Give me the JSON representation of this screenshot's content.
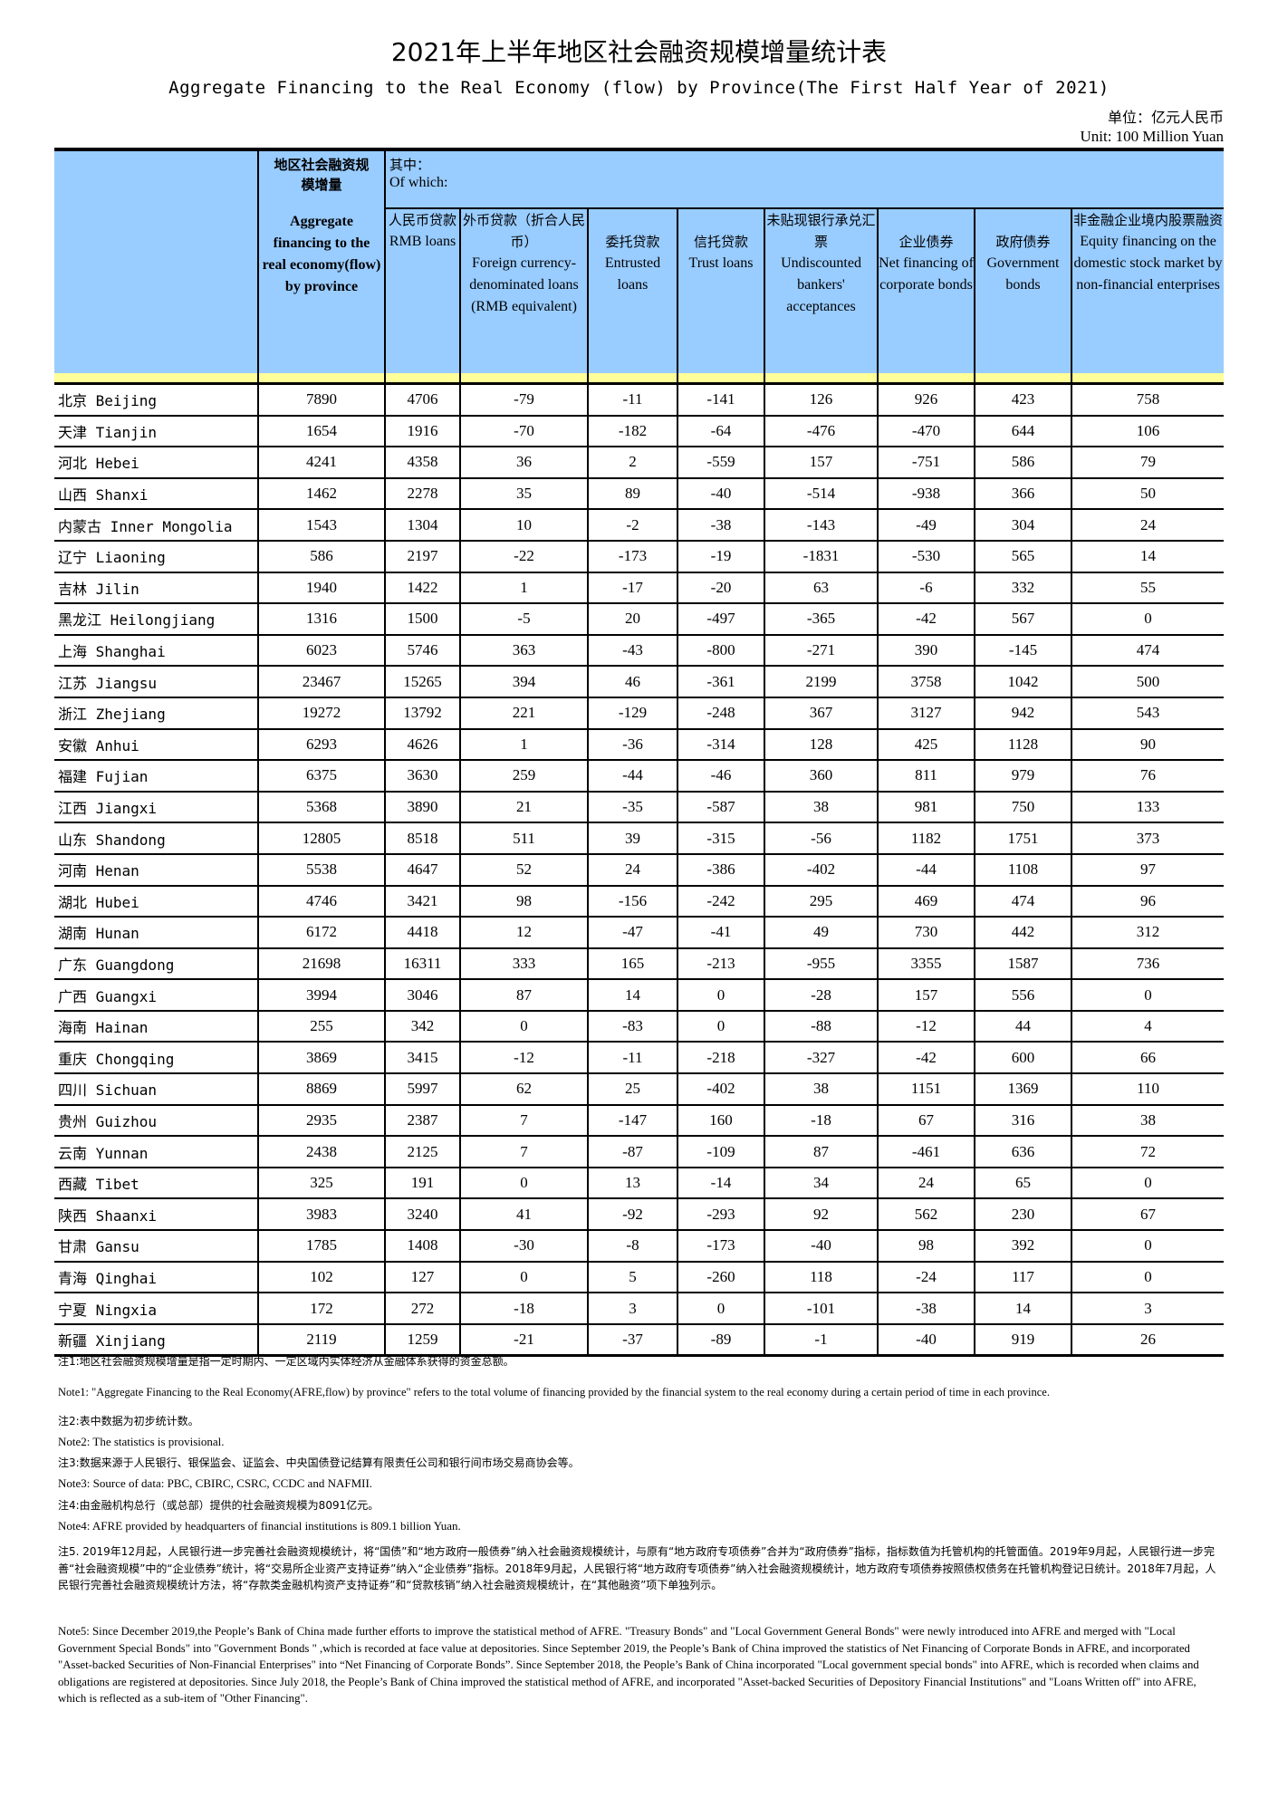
{
  "title": "2021年上半年地区社会融资规模增量统计表",
  "subtitle": "Aggregate Financing to the Real Economy (flow)  by Province(The First Half Year of 2021)",
  "unit_cn": "单位：亿元人民币",
  "unit_en": "Unit: 100 Million Yuan",
  "header": {
    "afre_cn": "地区社会融资规模增量",
    "afre_en": "Aggregate financing to the real economy(flow) by province",
    "of_which_cn": "其中：",
    "of_which_en": "Of which:",
    "columns": [
      {
        "cn": "人民币贷款",
        "en": "RMB loans"
      },
      {
        "cn": "外币贷款（折合人民币）",
        "en": "Foreign currency-denominated loans (RMB equivalent)"
      },
      {
        "cn": "委托贷款",
        "en": "Entrusted loans"
      },
      {
        "cn": "信托贷款",
        "en": "Trust loans"
      },
      {
        "cn": "未贴现银行承兑汇票",
        "en": "Undiscounted bankers' acceptances"
      },
      {
        "cn": "企业债券",
        "en": "Net financing of corporate bonds"
      },
      {
        "cn": "政府债券",
        "en": "Government bonds"
      },
      {
        "cn": "非金融企业境内股票融资",
        "en": "Equity financing on the domestic stock market by non-financial enterprises"
      }
    ]
  },
  "rows": [
    [
      "北京 Beijing",
      "7890",
      "4706",
      "-79",
      "-11",
      "-141",
      "126",
      "926",
      "423",
      "758"
    ],
    [
      "天津 Tianjin",
      "1654",
      "1916",
      "-70",
      "-182",
      "-64",
      "-476",
      "-470",
      "644",
      "106"
    ],
    [
      "河北 Hebei",
      "4241",
      "4358",
      "36",
      "2",
      "-559",
      "157",
      "-751",
      "586",
      "79"
    ],
    [
      "山西 Shanxi",
      "1462",
      "2278",
      "35",
      "89",
      "-40",
      "-514",
      "-938",
      "366",
      "50"
    ],
    [
      "内蒙古 Inner Mongolia",
      "1543",
      "1304",
      "10",
      "-2",
      "-38",
      "-143",
      "-49",
      "304",
      "24"
    ],
    [
      "辽宁 Liaoning",
      "586",
      "2197",
      "-22",
      "-173",
      "-19",
      "-1831",
      "-530",
      "565",
      "14"
    ],
    [
      "吉林 Jilin",
      "1940",
      "1422",
      "1",
      "-17",
      "-20",
      "63",
      "-6",
      "332",
      "55"
    ],
    [
      "黑龙江 Heilongjiang",
      "1316",
      "1500",
      "-5",
      "20",
      "-497",
      "-365",
      "-42",
      "567",
      "0"
    ],
    [
      "上海 Shanghai",
      "6023",
      "5746",
      "363",
      "-43",
      "-800",
      "-271",
      "390",
      "-145",
      "474"
    ],
    [
      "江苏 Jiangsu",
      "23467",
      "15265",
      "394",
      "46",
      "-361",
      "2199",
      "3758",
      "1042",
      "500"
    ],
    [
      "浙江 Zhejiang",
      "19272",
      "13792",
      "221",
      "-129",
      "-248",
      "367",
      "3127",
      "942",
      "543"
    ],
    [
      "安徽 Anhui",
      "6293",
      "4626",
      "1",
      "-36",
      "-314",
      "128",
      "425",
      "1128",
      "90"
    ],
    [
      "福建 Fujian",
      "6375",
      "3630",
      "259",
      "-44",
      "-46",
      "360",
      "811",
      "979",
      "76"
    ],
    [
      "江西 Jiangxi",
      "5368",
      "3890",
      "21",
      "-35",
      "-587",
      "38",
      "981",
      "750",
      "133"
    ],
    [
      "山东 Shandong",
      "12805",
      "8518",
      "511",
      "39",
      "-315",
      "-56",
      "1182",
      "1751",
      "373"
    ],
    [
      "河南 Henan",
      "5538",
      "4647",
      "52",
      "24",
      "-386",
      "-402",
      "-44",
      "1108",
      "97"
    ],
    [
      "湖北 Hubei",
      "4746",
      "3421",
      "98",
      "-156",
      "-242",
      "295",
      "469",
      "474",
      "96"
    ],
    [
      "湖南 Hunan",
      "6172",
      "4418",
      "12",
      "-47",
      "-41",
      "49",
      "730",
      "442",
      "312"
    ],
    [
      "广东 Guangdong",
      "21698",
      "16311",
      "333",
      "165",
      "-213",
      "-955",
      "3355",
      "1587",
      "736"
    ],
    [
      "广西 Guangxi",
      "3994",
      "3046",
      "87",
      "14",
      "0",
      "-28",
      "157",
      "556",
      "0"
    ],
    [
      "海南 Hainan",
      "255",
      "342",
      "0",
      "-83",
      "0",
      "-88",
      "-12",
      "44",
      "4"
    ],
    [
      "重庆 Chongqing",
      "3869",
      "3415",
      "-12",
      "-11",
      "-218",
      "-327",
      "-42",
      "600",
      "66"
    ],
    [
      "四川 Sichuan",
      "8869",
      "5997",
      "62",
      "25",
      "-402",
      "38",
      "1151",
      "1369",
      "110"
    ],
    [
      "贵州 Guizhou",
      "2935",
      "2387",
      "7",
      "-147",
      "160",
      "-18",
      "67",
      "316",
      "38"
    ],
    [
      "云南 Yunnan",
      "2438",
      "2125",
      "7",
      "-87",
      "-109",
      "87",
      "-461",
      "636",
      "72"
    ],
    [
      "西藏 Tibet",
      "325",
      "191",
      "0",
      "13",
      "-14",
      "34",
      "24",
      "65",
      "0"
    ],
    [
      "陕西 Shaanxi",
      "3983",
      "3240",
      "41",
      "-92",
      "-293",
      "92",
      "562",
      "230",
      "67"
    ],
    [
      "甘肃 Gansu",
      "1785",
      "1408",
      "-30",
      "-8",
      "-173",
      "-40",
      "98",
      "392",
      "0"
    ],
    [
      "青海 Qinghai",
      "102",
      "127",
      "0",
      "5",
      "-260",
      "118",
      "-24",
      "117",
      "0"
    ],
    [
      "宁夏 Ningxia",
      "172",
      "272",
      "-18",
      "3",
      "0",
      "-101",
      "-38",
      "14",
      "3"
    ],
    [
      "新疆 Xinjiang",
      "2119",
      "1259",
      "-21",
      "-37",
      "-89",
      "-1",
      "-40",
      "919",
      "26"
    ]
  ],
  "notes": {
    "n1_cn": "注1:地区社会融资规模增量是指一定时期内、一定区域内实体经济从金融体系获得的资金总额。",
    "n1_en": "Note1: \"Aggregate Financing to the Real Economy(AFRE,flow) by province\" refers to the total volume of financing provided by the financial system to the real economy during a certain period of time in each province.",
    "n2_cn": "注2:表中数据为初步统计数。",
    "n2_en": "Note2: The statistics is provisional.",
    "n3_cn": "注3:数据来源于人民银行、银保监会、证监会、中央国债登记结算有限责任公司和银行间市场交易商协会等。",
    "n3_en": "Note3: Source of data: PBC, CBIRC, CSRC, CCDC and NAFMII.",
    "n4_cn": "注4:由金融机构总行（或总部）提供的社会融资规模为8091亿元。",
    "n4_en": "Note4: AFRE provided by headquarters of financial institutions is 809.1 billion Yuan.",
    "n5_cn": "注5. 2019年12月起，人民银行进一步完善社会融资规模统计，将“国债”和“地方政府一般债券”纳入社会融资规模统计，与原有“地方政府专项债券”合并为“政府债券”指标，指标数值为托管机构的托管面值。2019年9月起，人民银行进一步完善“社会融资规模”中的“企业债券”统计，将“交易所企业资产支持证券”纳入“企业债券”指标。2018年9月起，人民银行将“地方政府专项债券”纳入社会融资规模统计，地方政府专项债券按照债权债务在托管机构登记日统计。2018年7月起，人民银行完善社会融资规模统计方法，将“存款类金融机构资产支持证券”和“贷款核销”纳入社会融资规模统计，在“其他融资”项下单独列示。",
    "n5_en": "Note5:  Since December 2019,the People’s Bank of China made further efforts to improve the statistical method of AFRE. \"Treasury Bonds\" and \"Local Government General Bonds\" were newly introduced into AFRE and merged with  \"Local Government Special Bonds\" into \"Government Bonds \" ,which is recorded at face value at depositories. Since September 2019, the People’s Bank of China improved the statistics of Net Financing of Corporate Bonds in AFRE, and incorporated \"Asset-backed Securities of Non-Financial Enterprises\" into “Net Financing of Corporate Bonds”.  Since September 2018, the People’s Bank of China incorporated \"Local government special bonds\" into AFRE, which is recorded when claims and obligations are registered at depositories. Since July 2018, the People’s Bank of China improved the statistical method of AFRE, and incorporated \"Asset-backed Securities of Depository Financial Institutions\" and \"Loans Written off\" into AFRE, which is reflected as a sub-item of \"Other Financing\"."
  },
  "colors": {
    "header_bg": "#99ccff",
    "separator_bg": "#ffff99"
  }
}
